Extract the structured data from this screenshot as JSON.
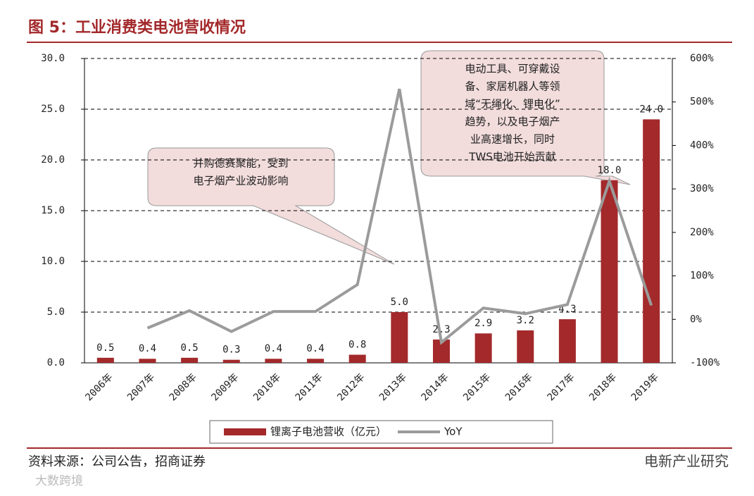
{
  "chart_data": {
    "type": "bar_line",
    "title": "图 5：工业消费类电池营收情况",
    "categories": [
      "2006年",
      "2007年",
      "2008年",
      "2009年",
      "2010年",
      "2011年",
      "2012年",
      "2013年",
      "2014年",
      "2015年",
      "2016年",
      "2017年",
      "2018年",
      "2019年"
    ],
    "series": [
      {
        "name": "锂离子电池营收（亿元）",
        "color": "#a3292b",
        "type": "bar",
        "values": [
          0.5,
          0.4,
          0.5,
          0.3,
          0.4,
          0.4,
          0.8,
          5,
          2.3,
          2.9,
          3.2,
          4.3,
          18,
          24
        ],
        "value_labels": [
          "0.5",
          "0.4",
          "0.5",
          "0.3",
          "0.4",
          "0.4",
          "0.8",
          "5.0",
          "2.3",
          "2.9",
          "3.2",
          "4.3",
          "18.0",
          "24.0"
        ]
      },
      {
        "name": "YoY",
        "color": "#9b9b9b",
        "type": "line",
        "axis": "y2",
        "values": [
          null,
          -20,
          20,
          -28,
          18,
          18,
          80,
          530,
          -53,
          26,
          13,
          34,
          318,
          32
        ]
      }
    ],
    "ylim": [
      0,
      30
    ],
    "yticks": [
      {
        "value": 0,
        "label": "0.0"
      },
      {
        "value": 5,
        "label": "5.0"
      },
      {
        "value": 10,
        "label": "10.0"
      },
      {
        "value": 15,
        "label": "15.0"
      },
      {
        "value": 20,
        "label": "20.0"
      },
      {
        "value": 25,
        "label": "25.0"
      },
      {
        "value": 30,
        "label": "30.0"
      }
    ],
    "y2lim": [
      -100,
      600
    ],
    "y2ticks": [
      {
        "value": -100,
        "label": "-100%"
      },
      {
        "value": 0,
        "label": "0%"
      },
      {
        "value": 100,
        "label": "100%"
      },
      {
        "value": 200,
        "label": "200%"
      },
      {
        "value": 300,
        "label": "300%"
      },
      {
        "value": 400,
        "label": "400%"
      },
      {
        "value": 500,
        "label": "500%"
      },
      {
        "value": 600,
        "label": "600%"
      }
    ],
    "grid": true,
    "annotations": [
      {
        "lines": [
          "并购德赛聚能，受到",
          "电子烟产业波动影响"
        ]
      },
      {
        "lines": [
          "电动工具、可穿戴设",
          "备、家居机器人等领",
          "域“无绳化、锂电化”",
          "趋势，以及电子烟产",
          "业高速增长，同时",
          "TWS电池开始贡献"
        ]
      }
    ],
    "source": "资料来源：公司公告，招商证券"
  },
  "watermarks": [
    "电新产业研究",
    "大数跨境"
  ]
}
